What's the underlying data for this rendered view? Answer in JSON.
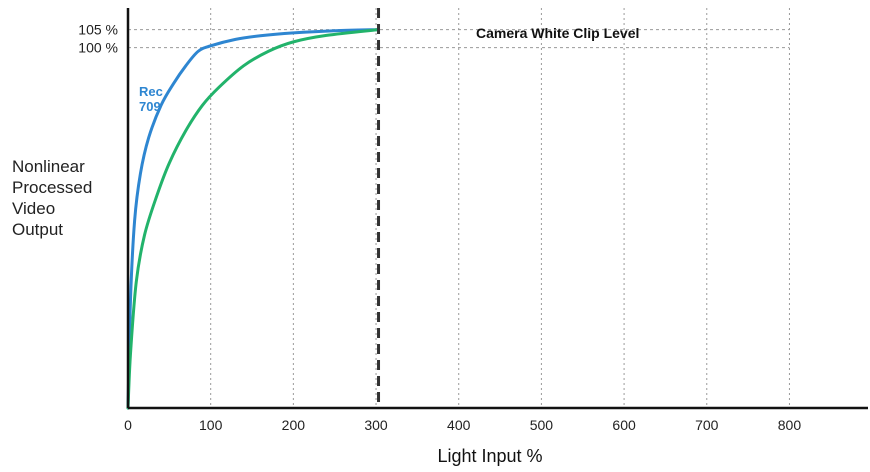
{
  "chart_data": {
    "type": "line",
    "title": "",
    "xlabel": "Light Input  %",
    "ylabel_lines": [
      "Nonlinear",
      "Processed",
      "Video",
      "Output"
    ],
    "x_ticks": [
      0,
      100,
      200,
      300,
      400,
      500,
      600,
      700,
      800
    ],
    "x_tick_labels": [
      "0",
      "100",
      "200",
      "300",
      "400",
      "500",
      "600",
      "700",
      "800"
    ],
    "xlim": [
      0,
      895
    ],
    "ylim": [
      0,
      111
    ],
    "y_ticks": [
      100,
      105
    ],
    "y_tick_labels": [
      "100 %",
      "105 %"
    ],
    "grid": "dotted vertical at x ticks; dashed horizontal at 100% and 105%",
    "clip_level": {
      "x": 303,
      "label": "Camera White Clip Level"
    },
    "series": [
      {
        "name": "Rec 709",
        "label_lines": [
          "Rec",
          "709"
        ],
        "color": "#2e86d1",
        "x": [
          0,
          3,
          8,
          15,
          25,
          40,
          55,
          70,
          85,
          100,
          130,
          160,
          200,
          250,
          303
        ],
        "y": [
          0,
          30,
          52,
          65,
          75,
          84,
          90,
          95,
          99,
          100.5,
          102.3,
          103.3,
          104.1,
          104.7,
          105
        ]
      },
      {
        "name": "",
        "color": "#22b36b",
        "x": [
          0,
          3,
          10,
          20,
          35,
          50,
          70,
          90,
          110,
          140,
          170,
          200,
          240,
          303
        ],
        "y": [
          0,
          15,
          35,
          48,
          59,
          68,
          77,
          84,
          89,
          95,
          99,
          101.6,
          103.4,
          105
        ]
      }
    ]
  }
}
